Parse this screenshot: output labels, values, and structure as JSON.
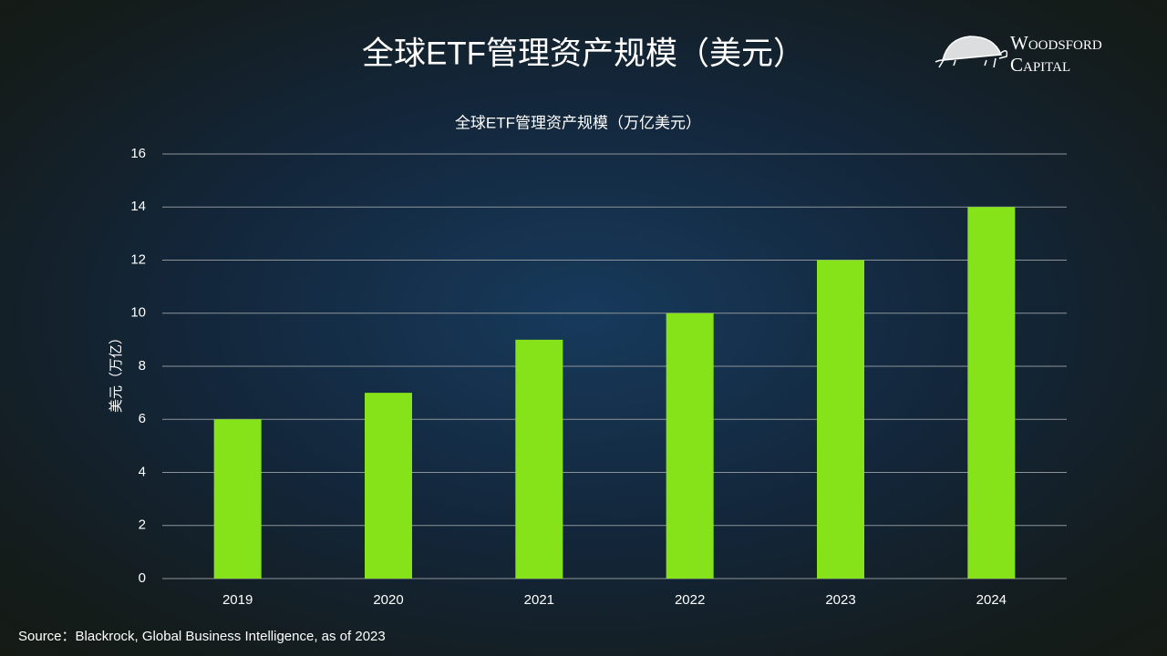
{
  "slide": {
    "title": "全球ETF管理资产规模（美元）",
    "logo": [
      "Woodsford",
      "Capital"
    ],
    "source": "Source：Blackrock, Global Business Intelligence,  as of 2023"
  },
  "chart_data": {
    "type": "bar",
    "title": "全球ETF管理资产规模（万亿美元）",
    "y_label": "美元（万亿）",
    "categories": [
      "2019",
      "2020",
      "2021",
      "2022",
      "2023",
      "2024"
    ],
    "values": [
      6,
      7,
      9,
      10,
      12,
      14
    ],
    "color": "#86e31a",
    "ylim": [
      0,
      16
    ],
    "yticks": [
      0,
      2,
      4,
      6,
      8,
      10,
      12,
      14,
      16
    ],
    "grid": true
  }
}
